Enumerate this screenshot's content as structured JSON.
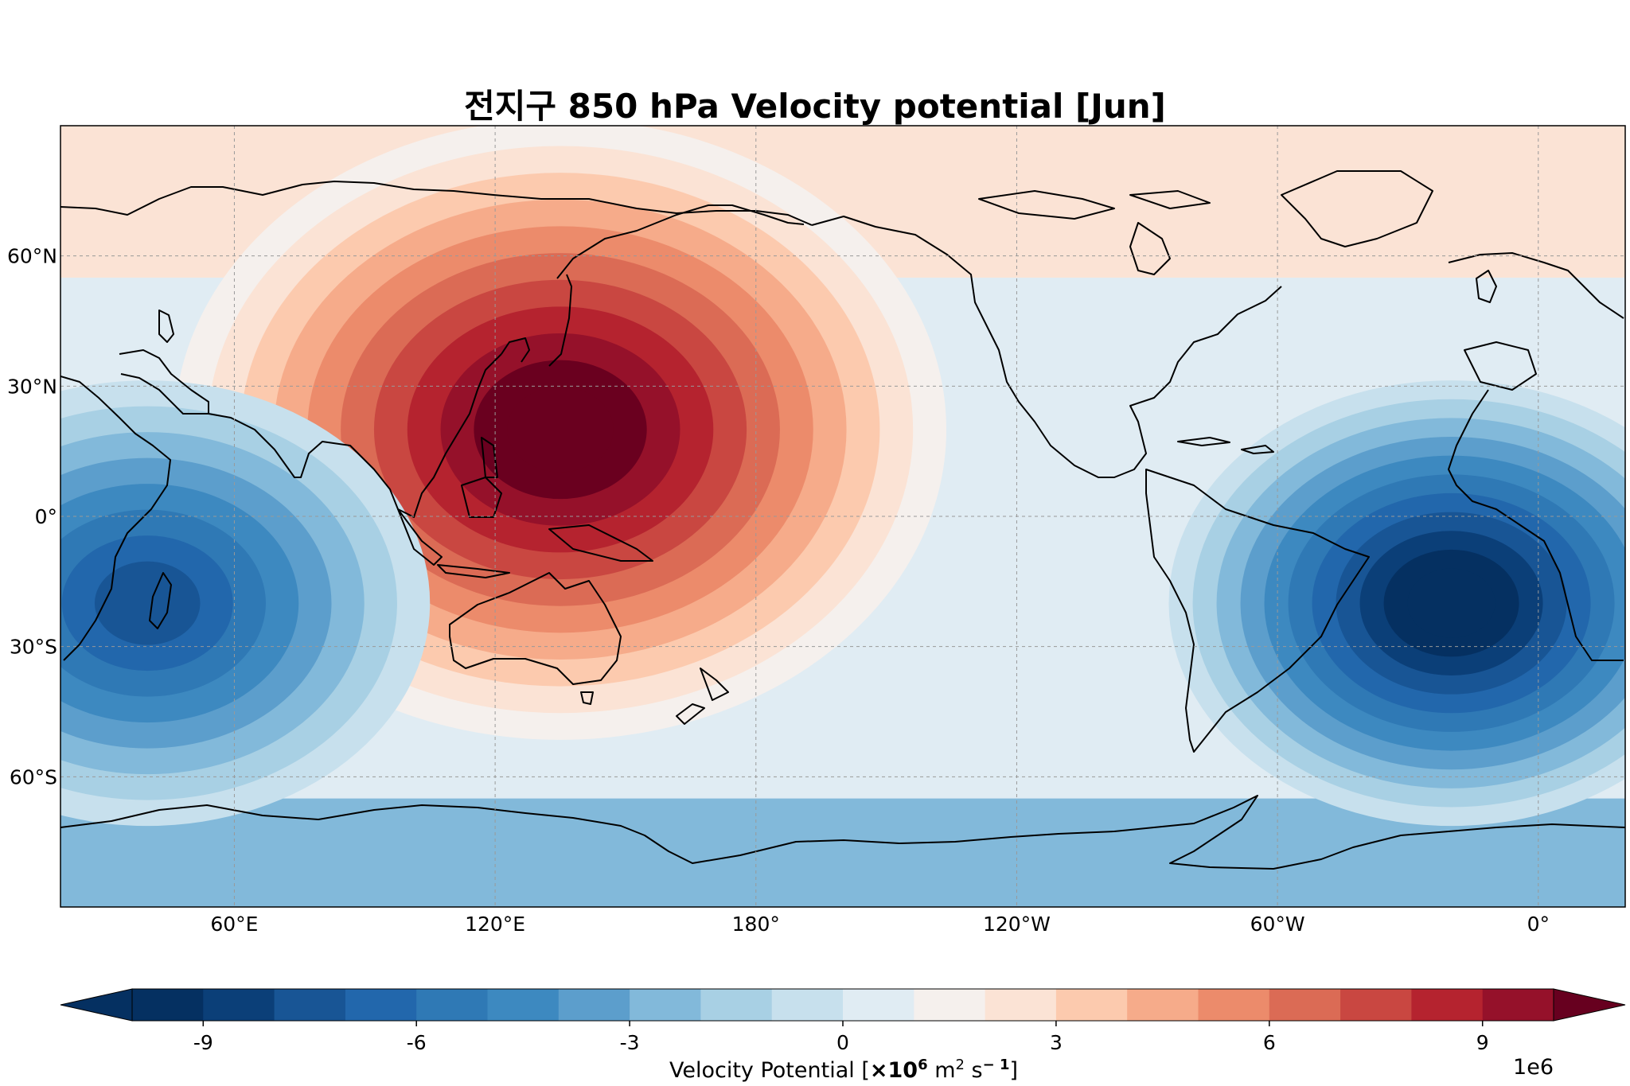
{
  "title": "전지구 850 hPa Velocity potential [Jun]",
  "map": {
    "projection": "PlateCarree, central_longitude 160",
    "lon_range": [
      20,
      380
    ],
    "lat_range": [
      -90,
      90
    ],
    "x_ticks": [
      {
        "lon": 60,
        "label": "60°E"
      },
      {
        "lon": 120,
        "label": "120°E"
      },
      {
        "lon": 180,
        "label": "180°"
      },
      {
        "lon": 240,
        "label": "120°W"
      },
      {
        "lon": 300,
        "label": "60°W"
      },
      {
        "lon": 360,
        "label": "0°"
      }
    ],
    "y_ticks": [
      {
        "lat": 60,
        "label": "60°N"
      },
      {
        "lat": 30,
        "label": "30°N"
      },
      {
        "lat": 0,
        "label": "0°"
      },
      {
        "lat": -30,
        "label": "30°S"
      },
      {
        "lat": -60,
        "label": "60°S"
      }
    ],
    "centers": [
      {
        "name": "West Pacific maximum",
        "lon": 135,
        "lat": 20,
        "value": 11
      },
      {
        "name": "South Atlantic minimum",
        "lon": 340,
        "lat": -20,
        "value": -11
      },
      {
        "name": "Indian Ocean minimum",
        "lon": 40,
        "lat": -20,
        "value": -8
      }
    ]
  },
  "colorbar": {
    "levels": [
      -10,
      -9,
      -8,
      -7,
      -6,
      -5,
      -4,
      -3,
      -2,
      -1,
      0,
      1,
      2,
      3,
      4,
      5,
      6,
      7,
      8,
      9,
      10
    ],
    "ticks": [
      {
        "v": -9,
        "label": "-9"
      },
      {
        "v": -6,
        "label": "-6"
      },
      {
        "v": -3,
        "label": "-3"
      },
      {
        "v": 0,
        "label": "0"
      },
      {
        "v": 3,
        "label": "3"
      },
      {
        "v": 6,
        "label": "6"
      },
      {
        "v": 9,
        "label": "9"
      }
    ],
    "label_text": "Velocity Potential [",
    "label_bold": "×10",
    "label_sup": "6",
    "label_mid": " m",
    "label_sup2": "2",
    "label_tail": " s",
    "label_sup3": "− 1",
    "label_close": "]",
    "offset": "1e6",
    "colors": [
      "#053061",
      "#0b3f78",
      "#185595",
      "#2267ac",
      "#2f79b5",
      "#3d89c0",
      "#5c9ecc",
      "#82b9da",
      "#a8d0e4",
      "#c7e0ed",
      "#e0ecf3",
      "#f5f0ed",
      "#fbe3d5",
      "#fccaae",
      "#f6ab8a",
      "#ec8b6b",
      "#db6b55",
      "#c94741",
      "#b5232f",
      "#95112a",
      "#6a001f"
    ],
    "over_color": "#67001f",
    "under_color": "#053061"
  }
}
